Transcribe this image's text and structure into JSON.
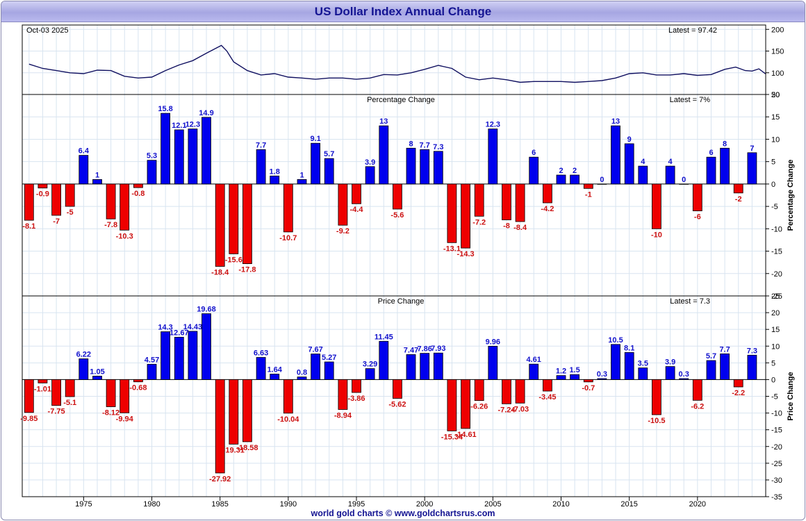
{
  "title": "US Dollar Index Annual Change",
  "footer": "world gold charts © www.goldchartsrus.com",
  "colors": {
    "up": "#0000ee",
    "down": "#ee0000",
    "line": "#101060",
    "grid": "#d8e4f0",
    "title": "#151593"
  },
  "chart_data": [
    {
      "type": "line",
      "panel": "price",
      "date_label": "Oct-03  2025",
      "latest_label": "Latest = 97.42",
      "ylim": [
        50,
        210
      ],
      "yticks": [
        50,
        100,
        150,
        200
      ],
      "xlim": [
        1970.5,
        2025.0
      ],
      "grid": true,
      "x": [
        1971.0,
        1972.0,
        1973.0,
        1974.0,
        1975.0,
        1976.0,
        1977.0,
        1978.0,
        1979.0,
        1980.0,
        1981.0,
        1982.0,
        1983.0,
        1984.0,
        1985.1,
        1985.5,
        1986.0,
        1987.0,
        1988.0,
        1989.0,
        1990.0,
        1991.0,
        1992.0,
        1993.0,
        1994.0,
        1995.0,
        1996.0,
        1997.0,
        1998.0,
        1999.0,
        2000.0,
        2001.0,
        2002.0,
        2003.0,
        2004.0,
        2005.0,
        2006.0,
        2007.0,
        2008.0,
        2009.0,
        2010.0,
        2011.0,
        2012.0,
        2013.0,
        2014.0,
        2015.0,
        2016.0,
        2017.0,
        2018.0,
        2019.0,
        2020.0,
        2021.0,
        2022.0,
        2022.8,
        2023.5,
        2024.0,
        2024.5,
        2025.0
      ],
      "y": [
        120,
        110,
        105,
        100,
        98,
        106,
        105,
        92,
        88,
        90,
        105,
        118,
        128,
        145,
        163,
        150,
        125,
        105,
        95,
        98,
        90,
        88,
        85,
        88,
        88,
        85,
        88,
        96,
        95,
        100,
        108,
        117,
        110,
        90,
        84,
        88,
        84,
        78,
        80,
        80,
        80,
        78,
        80,
        82,
        88,
        98,
        100,
        95,
        95,
        98,
        94,
        96,
        108,
        113,
        105,
        104,
        109,
        97.42
      ]
    },
    {
      "type": "bar",
      "panel": "percentage",
      "title": "Percentage Change",
      "latest_label": "Latest = 7%",
      "ylabel": "Percentage Change",
      "ylim": [
        -25,
        20
      ],
      "yticks": [
        20,
        15,
        10,
        5,
        0,
        -5,
        -10,
        -15,
        -20,
        -25
      ],
      "years": [
        1971,
        1972,
        1973,
        1974,
        1975,
        1976,
        1977,
        1978,
        1979,
        1980,
        1981,
        1982,
        1983,
        1984,
        1985,
        1986,
        1987,
        1988,
        1989,
        1990,
        1991,
        1992,
        1993,
        1994,
        1995,
        1996,
        1997,
        1998,
        1999,
        2000,
        2001,
        2002,
        2003,
        2004,
        2005,
        2006,
        2007,
        2008,
        2009,
        2010,
        2011,
        2012,
        2013,
        2014,
        2015,
        2016,
        2017,
        2018,
        2019,
        2020,
        2021,
        2022,
        2023,
        2024
      ],
      "values": [
        -8.1,
        -0.9,
        -7,
        -5,
        6.4,
        1,
        -7.8,
        -10.3,
        -0.8,
        5.3,
        15.8,
        12.1,
        12.3,
        14.9,
        -18.4,
        -15.6,
        -17.8,
        7.7,
        1.8,
        -10.7,
        1,
        9.1,
        5.7,
        -9.2,
        -4.4,
        3.9,
        13,
        -5.6,
        8,
        7.7,
        7.3,
        -13.1,
        -14.3,
        -7.2,
        12.3,
        -8,
        -8.4,
        6,
        -4.2,
        2,
        2,
        -1,
        0,
        13,
        9,
        4,
        -10,
        4,
        0,
        -6,
        6,
        8,
        -2,
        7
      ],
      "labels": [
        "-8.1",
        "-0.9",
        "-7",
        "-5",
        "6.4",
        "1",
        "-7.8",
        "-10.3",
        "-0.8",
        "5.3",
        "15.8",
        "12.1",
        "12.3",
        "14.9",
        "-18.4",
        "-15.6",
        "-17.8",
        "7.7",
        "1.8",
        "-10.7",
        "1",
        "9.1",
        "5.7",
        "-9.2",
        "-4.4",
        "3.9",
        "13",
        "-5.6",
        "8",
        "7.7",
        "7.3",
        "-13.1",
        "-14.3",
        "-7.2",
        "12.3",
        "-8",
        "-8.4",
        "6",
        "-4.2",
        "2",
        "2",
        "-1",
        "0",
        "13",
        "9",
        "4",
        "-10",
        "4",
        "0",
        "-6",
        "6",
        "8",
        "-2",
        "7"
      ]
    },
    {
      "type": "bar",
      "panel": "price-change",
      "title": "Price Change",
      "latest_label": "Latest = 7.3",
      "ylabel": "Price Change",
      "ylim": [
        -35,
        25
      ],
      "yticks": [
        25,
        20,
        15,
        10,
        5,
        0,
        -5,
        -10,
        -15,
        -20,
        -25,
        -30,
        -35
      ],
      "xticks": [
        1975,
        1980,
        1985,
        1990,
        1995,
        2000,
        2005,
        2010,
        2015,
        2020
      ],
      "years": [
        1971,
        1972,
        1973,
        1974,
        1975,
        1976,
        1977,
        1978,
        1979,
        1980,
        1981,
        1982,
        1983,
        1984,
        1985,
        1986,
        1987,
        1988,
        1989,
        1990,
        1991,
        1992,
        1993,
        1994,
        1995,
        1996,
        1997,
        1998,
        1999,
        2000,
        2001,
        2002,
        2003,
        2004,
        2005,
        2006,
        2007,
        2008,
        2009,
        2010,
        2011,
        2012,
        2013,
        2014,
        2015,
        2016,
        2017,
        2018,
        2019,
        2020,
        2021,
        2022,
        2023,
        2024
      ],
      "values": [
        -9.85,
        -1.01,
        -7.75,
        -5.1,
        6.22,
        1.05,
        -8.12,
        -9.94,
        -0.68,
        4.57,
        14.3,
        12.67,
        14.43,
        19.68,
        -27.92,
        -19.31,
        -18.58,
        6.63,
        1.64,
        -10.04,
        0.8,
        7.67,
        5.27,
        -8.94,
        -3.86,
        3.29,
        11.45,
        -5.62,
        7.47,
        7.86,
        7.93,
        -15.34,
        -14.61,
        -6.26,
        9.96,
        -7.24,
        -7.03,
        4.61,
        -3.45,
        1.2,
        1.5,
        -0.7,
        0.3,
        10.5,
        8.1,
        3.5,
        -10.5,
        3.9,
        0.3,
        -6.2,
        5.7,
        7.7,
        -2.2,
        7.3
      ],
      "labels": [
        "-9.85",
        "-1.01",
        "-7.75",
        "-5.1",
        "6.22",
        "1.05",
        "-8.12",
        "-9.94",
        "-0.68",
        "4.57",
        "14.3",
        "12.67",
        "14.43",
        "19.68",
        "-27.92",
        "-19.31",
        "-18.58",
        "6.63",
        "1.64",
        "-10.04",
        "0.8",
        "7.67",
        "5.27",
        "-8.94",
        "-3.86",
        "3.29",
        "11.45",
        "-5.62",
        "7.47",
        "7.86",
        "7.93",
        "-15.34",
        "-14.61",
        "-6.26",
        "9.96",
        "-7.24",
        "-7.03",
        "4.61",
        "-3.45",
        "1.2",
        "1.5",
        "-0.7",
        "0.3",
        "10.5",
        "8.1",
        "3.5",
        "-10.5",
        "3.9",
        "0.3",
        "-6.2",
        "5.7",
        "7.7",
        "-2.2",
        "7.3"
      ]
    }
  ]
}
